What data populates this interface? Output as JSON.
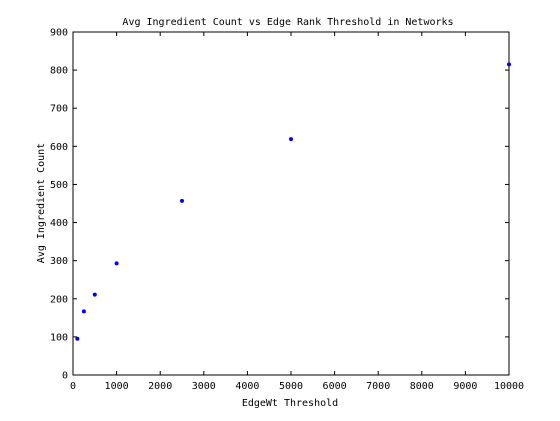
{
  "chart_data": {
    "type": "scatter",
    "title": "Avg Ingredient Count vs Edge Rank Threshold in Networks",
    "xlabel": "EdgeWt Threshold",
    "ylabel": "Avg Ingredient Count",
    "xlim": [
      0,
      10000
    ],
    "ylim": [
      0,
      900
    ],
    "xticks": [
      0,
      1000,
      2000,
      3000,
      4000,
      5000,
      6000,
      7000,
      8000,
      9000,
      10000
    ],
    "yticks": [
      0,
      100,
      200,
      300,
      400,
      500,
      600,
      700,
      800,
      900
    ],
    "grid": false,
    "legend": "none",
    "marker_color": "#0000ff",
    "x": [
      100,
      250,
      500,
      1000,
      2500,
      5000,
      10000
    ],
    "y": [
      95,
      167,
      211,
      293,
      457,
      619,
      815
    ]
  }
}
